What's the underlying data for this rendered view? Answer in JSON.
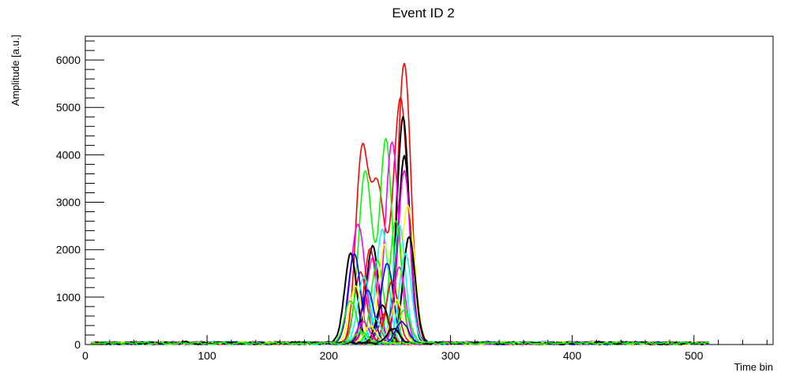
{
  "chart_data": {
    "type": "line",
    "title": "Event ID 2",
    "xlabel": "Time bin",
    "ylabel": "Amplitude [a.u.]",
    "xlim": [
      0,
      565
    ],
    "ylim": [
      0,
      6500
    ],
    "x_ticks": [
      0,
      100,
      200,
      300,
      400,
      500
    ],
    "y_ticks": [
      0,
      1000,
      2000,
      3000,
      4000,
      5000,
      6000
    ],
    "x_tick_labels": [
      "0",
      "100",
      "200",
      "300",
      "400",
      "500"
    ],
    "y_tick_labels": [
      "0",
      "1000",
      "2000",
      "3000",
      "4000",
      "5000",
      "6000"
    ],
    "grid": false,
    "legend": "none",
    "baseline": {
      "x_start": 5,
      "x_end": 512,
      "level": 50,
      "noise": 35
    },
    "series": [
      {
        "color": "#ff0000",
        "peaks": [
          {
            "x": 262,
            "amp": 5900,
            "w": 5.5
          },
          {
            "x": 226,
            "amp": 1500,
            "w": 5
          }
        ]
      },
      {
        "color": "#ff0000",
        "peaks": [
          {
            "x": 227,
            "amp": 3850,
            "w": 5
          },
          {
            "x": 240,
            "amp": 3300,
            "w": 6
          },
          {
            "x": 259,
            "amp": 5150,
            "w": 6
          }
        ]
      },
      {
        "color": "#00ff00",
        "peaks": [
          {
            "x": 230,
            "amp": 3650,
            "w": 5.5
          },
          {
            "x": 247,
            "amp": 4300,
            "w": 5
          }
        ]
      },
      {
        "color": "#000000",
        "peaks": [
          {
            "x": 261,
            "amp": 4780,
            "w": 5
          }
        ]
      },
      {
        "color": "#000000",
        "peaks": [
          {
            "x": 262,
            "amp": 3950,
            "w": 5
          }
        ]
      },
      {
        "color": "#ff00ff",
        "peaks": [
          {
            "x": 224,
            "amp": 2500,
            "w": 6
          },
          {
            "x": 252,
            "amp": 4250,
            "w": 5.5
          }
        ]
      },
      {
        "color": "#ff00ff",
        "peaks": [
          {
            "x": 262,
            "amp": 3650,
            "w": 5
          }
        ]
      },
      {
        "color": "#ffff00",
        "peaks": [
          {
            "x": 265,
            "amp": 2900,
            "w": 5.5
          }
        ]
      },
      {
        "color": "#00ffff",
        "peaks": [
          {
            "x": 258,
            "amp": 2500,
            "w": 5
          }
        ]
      },
      {
        "color": "#0000ff",
        "peaks": [
          {
            "x": 266,
            "amp": 2250,
            "w": 5
          }
        ]
      },
      {
        "color": "#000000",
        "peaks": [
          {
            "x": 218,
            "amp": 1900,
            "w": 5
          }
        ]
      },
      {
        "color": "#000000",
        "peaks": [
          {
            "x": 236,
            "amp": 2050,
            "w": 5
          }
        ]
      },
      {
        "color": "#000000",
        "peaks": [
          {
            "x": 266,
            "amp": 2250,
            "w": 5
          }
        ]
      },
      {
        "color": "#ff0000",
        "peaks": [
          {
            "x": 234,
            "amp": 2000,
            "w": 5
          }
        ]
      },
      {
        "color": "#0000ff",
        "peaks": [
          {
            "x": 221,
            "amp": 1900,
            "w": 5
          }
        ]
      },
      {
        "color": "#00ffff",
        "peaks": [
          {
            "x": 244,
            "amp": 2400,
            "w": 5
          }
        ]
      },
      {
        "color": "#00ff00",
        "peaks": [
          {
            "x": 240,
            "amp": 1750,
            "w": 5
          }
        ]
      },
      {
        "color": "#ffff00",
        "peaks": [
          {
            "x": 246,
            "amp": 2100,
            "w": 5
          }
        ]
      },
      {
        "color": "#ff00ff",
        "peaks": [
          {
            "x": 236,
            "amp": 1800,
            "w": 5
          }
        ]
      },
      {
        "color": "#00ff00",
        "peaks": [
          {
            "x": 255,
            "amp": 2600,
            "w": 5
          }
        ]
      },
      {
        "color": "#0000ff",
        "peaks": [
          {
            "x": 248,
            "amp": 1700,
            "w": 5
          }
        ]
      },
      {
        "color": "#00ffff",
        "peaks": [
          {
            "x": 229,
            "amp": 1400,
            "w": 5
          }
        ]
      },
      {
        "color": "#ff0000",
        "peaks": [
          {
            "x": 252,
            "amp": 1300,
            "w": 5
          }
        ]
      },
      {
        "color": "#ffff00",
        "peaks": [
          {
            "x": 222,
            "amp": 1200,
            "w": 5
          }
        ]
      },
      {
        "color": "#00ff00",
        "peaks": [
          {
            "x": 218,
            "amp": 900,
            "w": 5
          }
        ]
      },
      {
        "color": "#ff00ff",
        "peaks": [
          {
            "x": 258,
            "amp": 1600,
            "w": 5
          }
        ]
      },
      {
        "color": "#00ffff",
        "peaks": [
          {
            "x": 263,
            "amp": 1900,
            "w": 5
          }
        ]
      },
      {
        "color": "#0000ff",
        "peaks": [
          {
            "x": 232,
            "amp": 1100,
            "w": 5
          }
        ]
      },
      {
        "color": "#ffff00",
        "peaks": [
          {
            "x": 256,
            "amp": 900,
            "w": 5
          }
        ]
      },
      {
        "color": "#000000",
        "peaks": [
          {
            "x": 244,
            "amp": 800,
            "w": 5
          }
        ]
      },
      {
        "color": "#00ff00",
        "peaks": [
          {
            "x": 262,
            "amp": 700,
            "w": 5
          }
        ]
      },
      {
        "color": "#ff0000",
        "peaks": [
          {
            "x": 246,
            "amp": 600,
            "w": 5
          }
        ]
      },
      {
        "color": "#00ffff",
        "peaks": [
          {
            "x": 238,
            "amp": 500,
            "w": 5
          }
        ]
      },
      {
        "color": "#ff00ff",
        "peaks": [
          {
            "x": 228,
            "amp": 450,
            "w": 5
          }
        ]
      },
      {
        "color": "#0000ff",
        "peaks": [
          {
            "x": 260,
            "amp": 450,
            "w": 5
          }
        ]
      },
      {
        "color": "#ffff00",
        "peaks": [
          {
            "x": 234,
            "amp": 350,
            "w": 5
          }
        ]
      },
      {
        "color": "#000000",
        "peaks": [
          {
            "x": 253,
            "amp": 300,
            "w": 5
          }
        ]
      },
      {
        "color": "#00ff00",
        "peaks": [
          {
            "x": 226,
            "amp": 250,
            "w": 5
          }
        ]
      }
    ]
  }
}
